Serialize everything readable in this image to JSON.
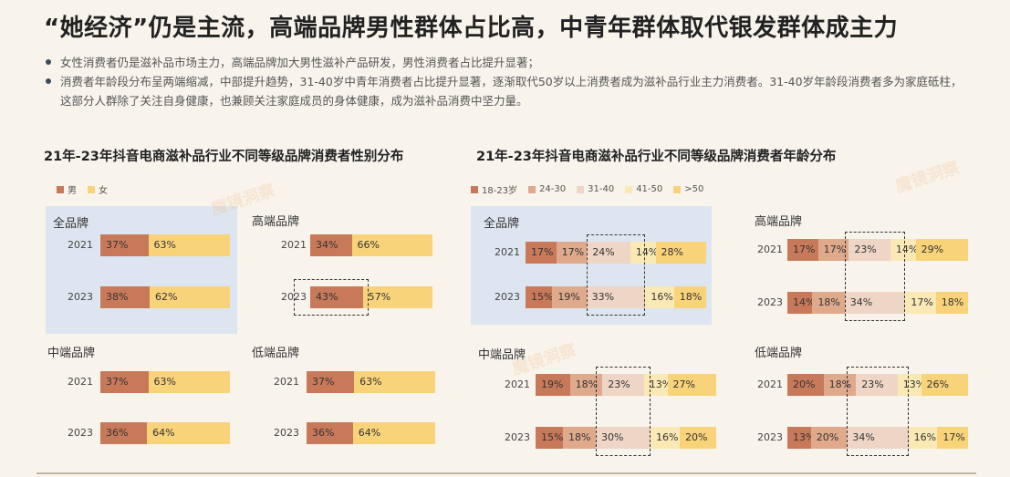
{
  "header": {
    "title": "“她经济”仍是主流，高端品牌男性群体占比高，中青年群体取代银发群体成主力",
    "bullets": [
      "女性消费者仍是滋补品市场主力，高端品牌加大男性滋补产品研发，男性消费者占比提升显著；",
      "消费者年龄段分布呈两端缩减，中部提升趋势，31-40岁中青年消费者占比提升显著，逐渐取代50岁以上消费者成为滋补品行业主力消费者。31-40岁年龄段消费者多为家庭砥柱，这部分人群除了关注自身健康，也兼顾关注家庭成员的身体健康，成为滋补品消费中坚力量。"
    ]
  },
  "watermark": "魔镜洞察",
  "colors": {
    "male": "#c8795a",
    "female": "#f9d37a",
    "age": [
      "#c8795a",
      "#dfa98c",
      "#eed5c5",
      "#fae9b4",
      "#f9d37a"
    ],
    "panel_bg": "#dde6f0"
  },
  "chart_data": [
    {
      "type": "bar",
      "title": "21年-23年抖音电商滋补品行业不同等级品牌消费者性别分布",
      "series_names": [
        "男",
        "女"
      ],
      "panels": [
        {
          "name": "全品牌",
          "rows": [
            {
              "year": "2021",
              "values": [
                37,
                63
              ]
            },
            {
              "year": "2023",
              "values": [
                38,
                62
              ]
            }
          ]
        },
        {
          "name": "高端品牌",
          "rows": [
            {
              "year": "2021",
              "values": [
                34,
                66
              ]
            },
            {
              "year": "2023",
              "values": [
                43,
                57
              ]
            }
          ]
        },
        {
          "name": "中端品牌",
          "rows": [
            {
              "year": "2021",
              "values": [
                37,
                63
              ]
            },
            {
              "year": "2023",
              "values": [
                36,
                64
              ]
            }
          ]
        },
        {
          "name": "低端品牌",
          "rows": [
            {
              "year": "2021",
              "values": [
                37,
                63
              ]
            },
            {
              "year": "2023",
              "values": [
                36,
                64
              ]
            }
          ]
        }
      ]
    },
    {
      "type": "bar",
      "title": "21年-23年抖音电商滋补品行业不同等级品牌消费者年龄分布",
      "series_names": [
        "18-23岁",
        "24-30",
        "31-40",
        "41-50",
        ">50"
      ],
      "panels": [
        {
          "name": "全品牌",
          "rows": [
            {
              "year": "2021",
              "values": [
                17,
                17,
                24,
                14,
                28
              ]
            },
            {
              "year": "2023",
              "values": [
                15,
                19,
                33,
                16,
                18
              ]
            }
          ]
        },
        {
          "name": "高端品牌",
          "rows": [
            {
              "year": "2021",
              "values": [
                17,
                17,
                23,
                14,
                29
              ]
            },
            {
              "year": "2023",
              "values": [
                14,
                18,
                34,
                17,
                18
              ]
            }
          ]
        },
        {
          "name": "中端品牌",
          "rows": [
            {
              "year": "2021",
              "values": [
                19,
                18,
                23,
                13,
                27
              ]
            },
            {
              "year": "2023",
              "values": [
                15,
                18,
                30,
                16,
                20
              ]
            }
          ]
        },
        {
          "name": "低端品牌",
          "rows": [
            {
              "year": "2021",
              "values": [
                20,
                18,
                23,
                13,
                26
              ]
            },
            {
              "year": "2023",
              "values": [
                13,
                20,
                34,
                16,
                17
              ]
            }
          ]
        }
      ]
    }
  ]
}
